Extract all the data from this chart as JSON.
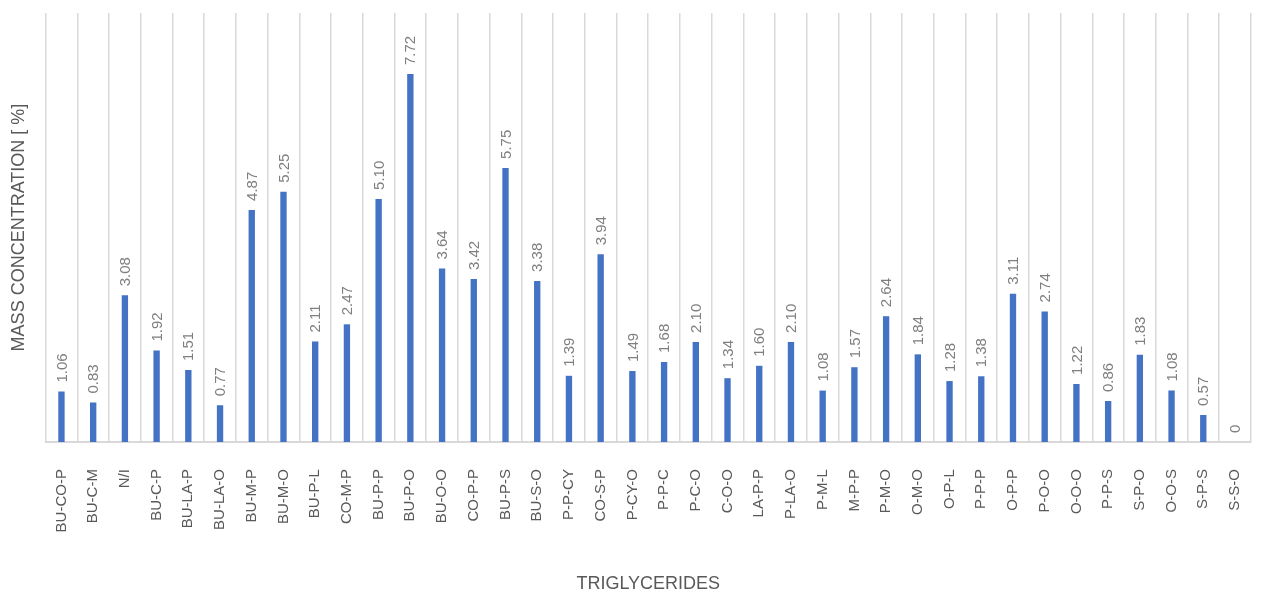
{
  "chart_data": {
    "type": "bar",
    "xlabel": "TRIGLYCERIDES",
    "ylabel": "MASS CONCENTRATION [ %]",
    "categories": [
      "BU-CO-P",
      "BU-C-M",
      "N/I",
      "BU-C-P",
      "BU-LA-P",
      "BU-LA-O",
      "BU-M-P",
      "BU-M-O",
      "BU-P-L",
      "CO-M-P",
      "BU-P-P",
      "BU-P-O",
      "BU-O-O",
      "CO-P-P",
      "BU-P-S",
      "BU-S-O",
      "P-P-CY",
      "CO-S-P",
      "P-CY-O",
      "P-P-C",
      "P-C-O",
      "C-O-O",
      "LA-P-P",
      "P-LA-O",
      "P-M-L",
      "M-P-P",
      "P-M-O",
      "O-M-O",
      "O-P-L",
      "P-P-P",
      "O-P-P",
      "P-O-O",
      "O-O-O",
      "P-P-S",
      "S-P-O",
      "O-O-S",
      "S-P-S",
      "S-S-O"
    ],
    "values": [
      1.06,
      0.83,
      3.08,
      1.92,
      1.51,
      0.77,
      4.87,
      5.25,
      2.11,
      2.47,
      5.1,
      7.72,
      3.64,
      3.42,
      5.75,
      3.38,
      1.39,
      3.94,
      1.49,
      1.68,
      2.1,
      1.34,
      1.6,
      2.1,
      1.08,
      1.57,
      2.64,
      1.84,
      1.28,
      1.38,
      3.11,
      2.74,
      1.22,
      0.86,
      1.83,
      1.08,
      0.57,
      0
    ],
    "value_labels": [
      "1.06",
      "0.83",
      "3.08",
      "1.92",
      "1.51",
      "0.77",
      "4.87",
      "5.25",
      "2.11",
      "2.47",
      "5.10",
      "7.72",
      "3.64",
      "3.42",
      "5.75",
      "3.38",
      "1.39",
      "3.94",
      "1.49",
      "1.68",
      "2.10",
      "1.34",
      "1.60",
      "2.10",
      "1.08",
      "1.57",
      "2.64",
      "1.84",
      "1.28",
      "1.38",
      "3.11",
      "2.74",
      "1.22",
      "0.86",
      "1.83",
      "1.08",
      "0.57",
      "0"
    ],
    "color": "#4472c4",
    "grid": "x",
    "tick_labels": "x"
  }
}
